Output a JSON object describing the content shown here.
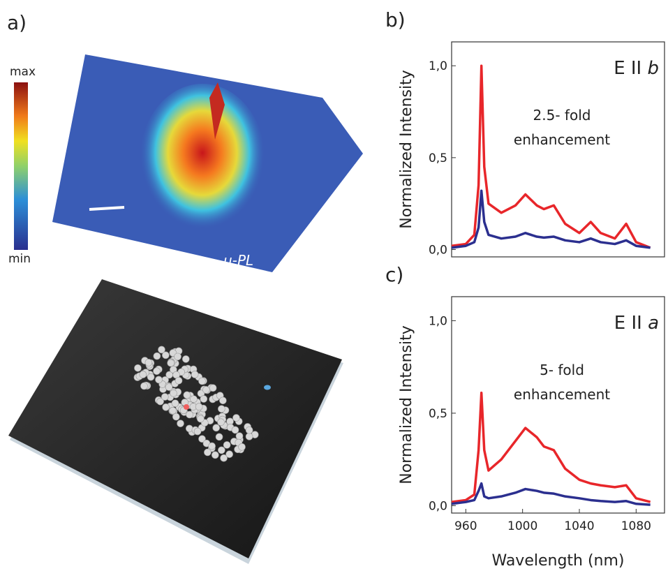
{
  "panel_a": {
    "label": "a)",
    "colorbar_max": "max",
    "colorbar_min": "min",
    "map_label": "μ-PL"
  },
  "chart_data": [
    {
      "type": "line",
      "panel_label": "b)",
      "ylabel": "Normalized Intensity",
      "annotation": {
        "polarization": "E II",
        "axis": "b",
        "enhancement": [
          "2.5- fold",
          "enhancement"
        ]
      },
      "x": [
        950,
        960,
        966,
        969,
        971,
        973,
        976,
        985,
        995,
        1002,
        1010,
        1015,
        1022,
        1030,
        1040,
        1048,
        1055,
        1065,
        1073,
        1080,
        1090
      ],
      "series": [
        {
          "color": "#e8262a",
          "values": [
            0.02,
            0.03,
            0.08,
            0.35,
            1.0,
            0.45,
            0.25,
            0.2,
            0.24,
            0.3,
            0.24,
            0.22,
            0.24,
            0.14,
            0.09,
            0.15,
            0.09,
            0.06,
            0.14,
            0.04,
            0.01
          ]
        },
        {
          "color": "#2b2f8f",
          "values": [
            0.01,
            0.02,
            0.04,
            0.12,
            0.32,
            0.15,
            0.08,
            0.06,
            0.07,
            0.09,
            0.07,
            0.065,
            0.07,
            0.05,
            0.04,
            0.06,
            0.04,
            0.03,
            0.05,
            0.02,
            0.01
          ]
        }
      ],
      "xlim": [
        950,
        1100
      ],
      "ylim": [
        -0.04,
        1.13
      ],
      "yticks": [
        {
          "value": 0,
          "label": "0,0"
        },
        {
          "value": 0.5,
          "label": "0,5"
        },
        {
          "value": 1.0,
          "label": "1,0"
        }
      ]
    },
    {
      "type": "line",
      "panel_label": "c)",
      "ylabel": "Normalized Intensity",
      "xlabel": "Wavelength (nm)",
      "annotation": {
        "polarization": "E II",
        "axis": "a",
        "enhancement": [
          "5- fold",
          "enhancement"
        ]
      },
      "x": [
        950,
        960,
        966,
        969,
        971,
        973,
        976,
        985,
        995,
        1002,
        1010,
        1015,
        1022,
        1030,
        1040,
        1048,
        1055,
        1065,
        1073,
        1080,
        1090
      ],
      "series": [
        {
          "color": "#e8262a",
          "values": [
            0.02,
            0.03,
            0.06,
            0.3,
            0.61,
            0.3,
            0.19,
            0.25,
            0.35,
            0.42,
            0.37,
            0.32,
            0.3,
            0.2,
            0.14,
            0.12,
            0.11,
            0.1,
            0.11,
            0.04,
            0.02
          ]
        },
        {
          "color": "#2b2f8f",
          "values": [
            0.01,
            0.02,
            0.03,
            0.08,
            0.12,
            0.05,
            0.04,
            0.05,
            0.07,
            0.09,
            0.08,
            0.07,
            0.065,
            0.05,
            0.04,
            0.03,
            0.025,
            0.02,
            0.025,
            0.01,
            0.005
          ]
        }
      ],
      "xlim": [
        950,
        1100
      ],
      "ylim": [
        -0.04,
        1.13
      ],
      "xticks": [
        960,
        1000,
        1040,
        1080
      ],
      "yticks": [
        {
          "value": 0,
          "label": "0,0"
        },
        {
          "value": 0.5,
          "label": "0,5"
        },
        {
          "value": 1.0,
          "label": "1,0"
        }
      ]
    }
  ]
}
